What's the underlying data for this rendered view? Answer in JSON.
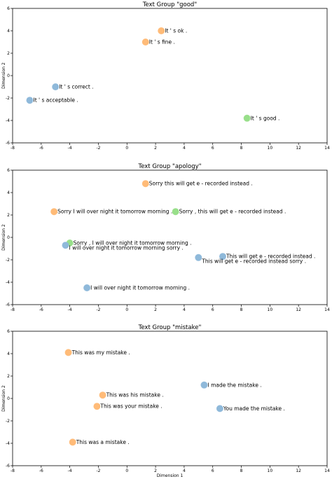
{
  "chart_data": [
    {
      "type": "scatter",
      "title": "Text Group \"good\"",
      "xlabel": "",
      "ylabel": "Dimension 2",
      "xlim": [
        -8,
        14
      ],
      "ylim": [
        -6,
        6
      ],
      "xticks": [
        -8,
        -6,
        -4,
        -2,
        0,
        2,
        4,
        6,
        8,
        10,
        12,
        14
      ],
      "yticks": [
        -6,
        -4,
        -2,
        0,
        2,
        4,
        6
      ],
      "points": [
        {
          "x": 2.4,
          "y": 4.0,
          "label": "It ' s ok .",
          "color": "#ffbb78"
        },
        {
          "x": 1.3,
          "y": 3.0,
          "label": "It ' s fine .",
          "color": "#ffbb78"
        },
        {
          "x": -5.0,
          "y": -1.0,
          "label": "It ' s correct .",
          "color": "#8fb9da"
        },
        {
          "x": -6.8,
          "y": -2.2,
          "label": "It ' s acceptable .",
          "color": "#8fb9da"
        },
        {
          "x": 8.4,
          "y": -3.8,
          "label": "It ' s good .",
          "color": "#98df8a"
        }
      ]
    },
    {
      "type": "scatter",
      "title": "Text Group \"apology\"",
      "xlabel": "",
      "ylabel": "Dimension 2",
      "xlim": [
        -8,
        14
      ],
      "ylim": [
        -6,
        6
      ],
      "xticks": [
        -8,
        -6,
        -4,
        -2,
        0,
        2,
        4,
        6,
        8,
        10,
        12,
        14
      ],
      "yticks": [
        -6,
        -4,
        -2,
        0,
        2,
        4,
        6
      ],
      "points": [
        {
          "x": 1.3,
          "y": 4.8,
          "label": "Sorry this will get e - recorded instead .",
          "color": "#ffbb78"
        },
        {
          "x": -5.1,
          "y": 2.3,
          "label": "Sorry I will over night it tomorrow morning .",
          "color": "#ffbb78"
        },
        {
          "x": 3.4,
          "y": 2.3,
          "label": "Sorry , this will get e - recorded instead .",
          "color": "#98df8a"
        },
        {
          "x": -4.0,
          "y": -0.5,
          "label": "Sorry , I will over night it tomorrow morning .",
          "color": "#98df8a"
        },
        {
          "x": -4.3,
          "y": -0.7,
          "label": "I will over night it tomorrow morning sorry .",
          "color": "#8fb9da",
          "dy": 4
        },
        {
          "x": 6.7,
          "y": -1.7,
          "label": "This will get e - recorded instead .",
          "color": "#8fb9da"
        },
        {
          "x": 5.0,
          "y": -1.8,
          "label": "This will get e - recorded instead sorry .",
          "color": "#8fb9da",
          "dy": 5
        },
        {
          "x": -2.8,
          "y": -4.5,
          "label": "I will over night it tomorrow morning .",
          "color": "#8fb9da"
        }
      ]
    },
    {
      "type": "scatter",
      "title": "Text Group \"mistake\"",
      "xlabel": "Dimension 1",
      "ylabel": "Dimension 2",
      "xlim": [
        -8,
        14
      ],
      "ylim": [
        -6,
        6
      ],
      "xticks": [
        -8,
        -6,
        -4,
        -2,
        0,
        2,
        4,
        6,
        8,
        10,
        12,
        14
      ],
      "yticks": [
        -6,
        -4,
        -2,
        0,
        2,
        4,
        6
      ],
      "points": [
        {
          "x": -4.1,
          "y": 4.1,
          "label": "This was my mistake .",
          "color": "#ffbb78"
        },
        {
          "x": 5.4,
          "y": 1.2,
          "label": "I made the mistake .",
          "color": "#8fb9da"
        },
        {
          "x": -1.7,
          "y": 0.3,
          "label": "This was his mistake .",
          "color": "#ffbb78"
        },
        {
          "x": -2.1,
          "y": -0.7,
          "label": "This was your mistake .",
          "color": "#ffbb78"
        },
        {
          "x": 6.5,
          "y": -0.9,
          "label": "You made the mistake .",
          "color": "#8fb9da"
        },
        {
          "x": -3.8,
          "y": -3.9,
          "label": "This was a mistake .",
          "color": "#ffbb78"
        }
      ]
    }
  ]
}
